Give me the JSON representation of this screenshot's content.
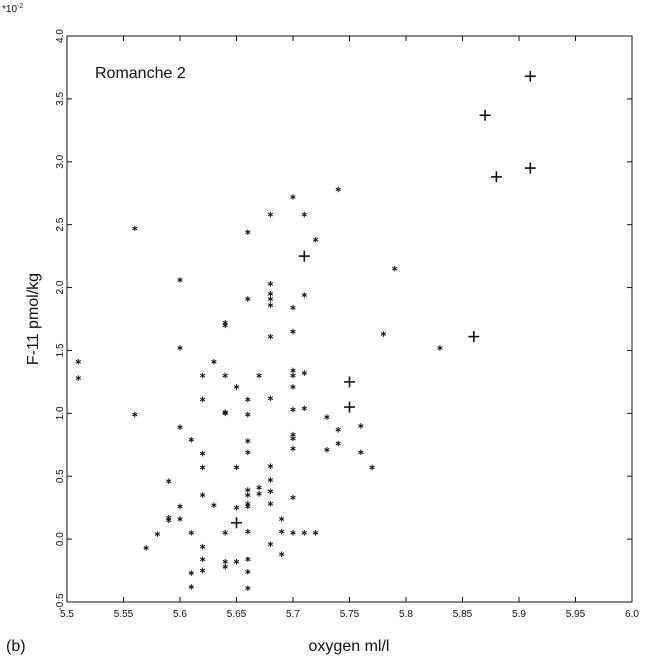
{
  "chart_data": {
    "type": "scatter",
    "panel_label": "(b)",
    "annotation": "Romanche 2",
    "xlabel": "oxygen ml/l",
    "ylabel": "F-11 pmol/kg",
    "y_multiplier": "*10",
    "y_multiplier_exp": "-2",
    "xlim": [
      5.5,
      6.0
    ],
    "ylim": [
      -0.5,
      4.0
    ],
    "x_ticks": [
      "5.5",
      "5.55",
      "5.6",
      "5.65",
      "5.7",
      "5.75",
      "5.8",
      "5.85",
      "5.9",
      "5.95",
      "6.0"
    ],
    "y_ticks": [
      "-0.5",
      "0.0",
      "0.5",
      "1.0",
      "1.5",
      "2.0",
      "2.5",
      "3.0",
      "3.5",
      "4.0"
    ],
    "grid": false,
    "series": [
      {
        "marker": "star",
        "points": [
          [
            5.51,
            1.41
          ],
          [
            5.51,
            1.28
          ],
          [
            5.56,
            2.47
          ],
          [
            5.56,
            0.99
          ],
          [
            5.57,
            -0.07
          ],
          [
            5.58,
            0.04
          ],
          [
            5.59,
            0.46
          ],
          [
            5.59,
            0.17
          ],
          [
            5.59,
            0.15
          ],
          [
            5.6,
            2.06
          ],
          [
            5.6,
            1.52
          ],
          [
            5.6,
            0.89
          ],
          [
            5.6,
            0.26
          ],
          [
            5.6,
            0.16
          ],
          [
            5.61,
            0.79
          ],
          [
            5.61,
            0.05
          ],
          [
            5.61,
            -0.27
          ],
          [
            5.61,
            -0.38
          ],
          [
            5.62,
            1.3
          ],
          [
            5.62,
            1.11
          ],
          [
            5.62,
            0.68
          ],
          [
            5.62,
            0.57
          ],
          [
            5.62,
            0.35
          ],
          [
            5.62,
            -0.06
          ],
          [
            5.62,
            -0.16
          ],
          [
            5.62,
            -0.25
          ],
          [
            5.63,
            1.41
          ],
          [
            5.63,
            0.27
          ],
          [
            5.64,
            1.72
          ],
          [
            5.64,
            1.7
          ],
          [
            5.64,
            1.3
          ],
          [
            5.64,
            1.01
          ],
          [
            5.64,
            1.0
          ],
          [
            5.64,
            0.05
          ],
          [
            5.64,
            -0.18
          ],
          [
            5.64,
            -0.22
          ],
          [
            5.65,
            1.21
          ],
          [
            5.65,
            0.57
          ],
          [
            5.65,
            0.25
          ],
          [
            5.65,
            -0.18
          ],
          [
            5.66,
            2.44
          ],
          [
            5.66,
            1.91
          ],
          [
            5.66,
            1.11
          ],
          [
            5.66,
            0.99
          ],
          [
            5.66,
            0.78
          ],
          [
            5.66,
            0.69
          ],
          [
            5.66,
            0.39
          ],
          [
            5.66,
            0.35
          ],
          [
            5.66,
            0.28
          ],
          [
            5.66,
            0.26
          ],
          [
            5.66,
            0.06
          ],
          [
            5.66,
            -0.16
          ],
          [
            5.66,
            -0.26
          ],
          [
            5.66,
            -0.39
          ],
          [
            5.67,
            1.3
          ],
          [
            5.67,
            0.41
          ],
          [
            5.67,
            0.36
          ],
          [
            5.68,
            2.58
          ],
          [
            5.68,
            2.03
          ],
          [
            5.68,
            1.95
          ],
          [
            5.68,
            1.91
          ],
          [
            5.68,
            1.86
          ],
          [
            5.68,
            1.61
          ],
          [
            5.68,
            1.12
          ],
          [
            5.68,
            0.58
          ],
          [
            5.68,
            0.47
          ],
          [
            5.68,
            0.38
          ],
          [
            5.68,
            0.28
          ],
          [
            5.68,
            -0.04
          ],
          [
            5.69,
            0.16
          ],
          [
            5.69,
            0.06
          ],
          [
            5.69,
            -0.12
          ],
          [
            5.7,
            2.72
          ],
          [
            5.7,
            1.84
          ],
          [
            5.7,
            1.65
          ],
          [
            5.7,
            1.34
          ],
          [
            5.7,
            1.3
          ],
          [
            5.7,
            1.21
          ],
          [
            5.7,
            1.03
          ],
          [
            5.7,
            0.83
          ],
          [
            5.7,
            0.8
          ],
          [
            5.7,
            0.72
          ],
          [
            5.7,
            0.33
          ],
          [
            5.7,
            0.05
          ],
          [
            5.71,
            2.58
          ],
          [
            5.71,
            1.94
          ],
          [
            5.71,
            1.32
          ],
          [
            5.71,
            1.04
          ],
          [
            5.71,
            0.05
          ],
          [
            5.72,
            2.38
          ],
          [
            5.72,
            0.05
          ],
          [
            5.73,
            0.97
          ],
          [
            5.73,
            0.71
          ],
          [
            5.74,
            2.78
          ],
          [
            5.74,
            0.87
          ],
          [
            5.74,
            0.76
          ],
          [
            5.76,
            0.9
          ],
          [
            5.76,
            0.69
          ],
          [
            5.77,
            0.57
          ],
          [
            5.78,
            1.63
          ],
          [
            5.79,
            2.15
          ],
          [
            5.83,
            1.52
          ]
        ]
      },
      {
        "marker": "plus",
        "points": [
          [
            5.65,
            0.13
          ],
          [
            5.71,
            2.25
          ],
          [
            5.75,
            1.25
          ],
          [
            5.75,
            1.05
          ],
          [
            5.86,
            1.61
          ],
          [
            5.87,
            3.37
          ],
          [
            5.88,
            2.88
          ],
          [
            5.91,
            3.68
          ],
          [
            5.91,
            2.95
          ]
        ]
      }
    ]
  }
}
